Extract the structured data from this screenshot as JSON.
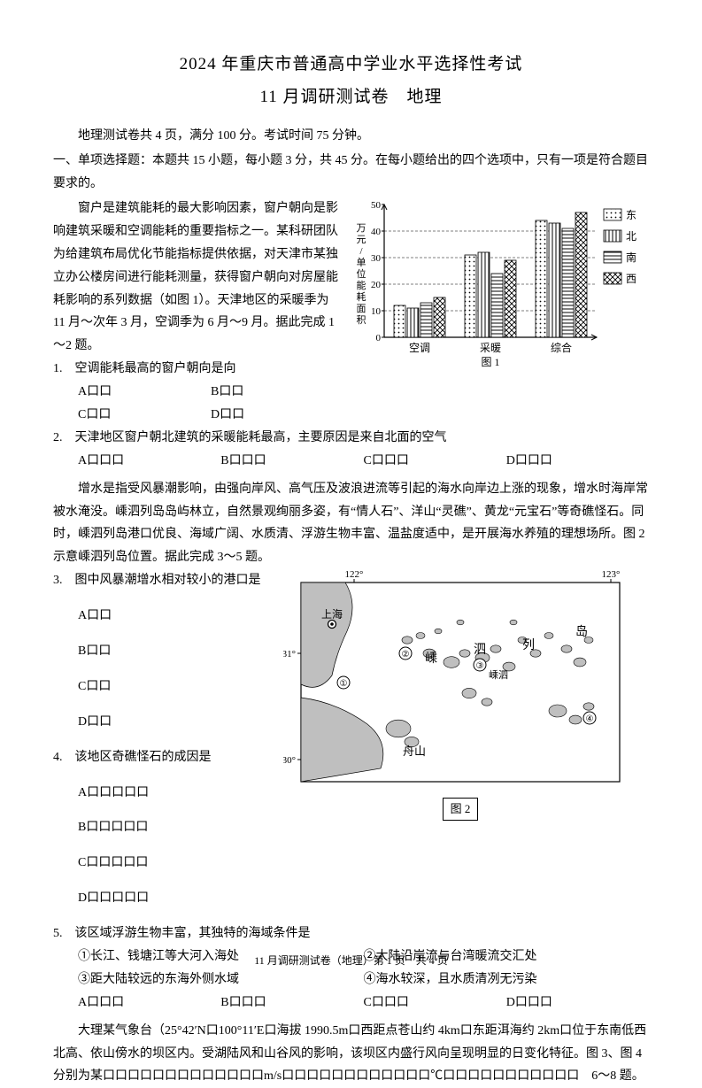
{
  "title_line1": "2024 年重庆市普通高中学业水平选择性考试",
  "title_line2": "11 月调研测试卷　地理",
  "intro": "地理测试卷共 4 页，满分 100 分。考试时间 75 分钟。",
  "section1_head": "一、单项选择题：本题共 15 小题，每小题 3 分，共 45 分。在每小题给出的四个选项中，只有一项是符合题目要求的。",
  "passage1_left": "窗户是建筑能耗的最大影响因素，窗户朝向是影响建筑采暖和空调能耗的重要指标之一。某科研团队为给建筑布局优化节能指标提供依据，对天津市某独立办公楼房间进行能耗测量，获得窗户朝向对房屋能耗影响的系列数据（如图 1）。天津地区的采暖季为 11 月～次年 3 月，空调季为 6 月～9 月。据此完成 1～2 题。",
  "q1": {
    "stem": "1.　空调能耗最高的窗户朝向是向",
    "A": "A口口",
    "B": "B口口",
    "C": "C口口",
    "D": "D口口"
  },
  "q2": {
    "stem": "2.　天津地区窗户朝北建筑的采暖能耗最高，主要原因是来自北面的空气",
    "A": "A口口口",
    "B": "B口口口",
    "C": "C口口口",
    "D": "D口口口"
  },
  "passage2": "增水是指受风暴潮影响，由强向岸风、高气压及波浪进流等引起的海水向岸边上涨的现象，增水时海岸常被水淹没。嵊泗列岛岛屿林立，自然景观绚丽多姿，有“情人石”、洋山“灵礁”、黄龙“元宝石”等奇礁怪石。同时，嵊泗列岛港口优良、海域广阔、水质清、浮游生物丰富、温盐度适中，是开展海水养殖的理想场所。图 2 示意嵊泗列岛位置。据此完成 3～5 题。",
  "q3": {
    "stem": "3.　图中风暴潮增水相对较小的港口是",
    "A": "A口口",
    "B": "B口口",
    "C": "C口口",
    "D": "D口口"
  },
  "q4": {
    "stem": "4.　该地区奇礁怪石的成因是",
    "A": "A口口口口口",
    "B": "B口口口口口",
    "C": "C口口口口口",
    "D": "D口口口口口"
  },
  "q5": {
    "stem": "5.　该区域浮游生物丰富，其独特的海域条件是",
    "c1": "①长江、钱塘江等大河入海处",
    "c2": "②大陆沿岸流与台湾暖流交汇处",
    "c3": "③距大陆较远的东海外侧水域",
    "c4": "④海水较深，且水质清冽无污染",
    "A": "A口口口",
    "B": "B口口口",
    "C": "C口口口",
    "D": "D口口口"
  },
  "passage3_a": "大理某气象台（25°42′N口100°11′E口海拔 1990.5m口西距点苍山约 4km口东距洱海约 2km口位于东南低西北高、依山傍水的坝区内。受湖陆风和山谷风的影响，该坝区内盛行风向呈现明显的日变化特征。图 3、图 4 分别为某口口口口口口口口口口口口口m/s口口口口口口口口口口口口℃口口口口口口口口口口口　6～8 题。",
  "chart1": {
    "type": "bar",
    "groups": [
      "空调",
      "采暖",
      "综合"
    ],
    "series": [
      "东",
      "北",
      "南",
      "西"
    ],
    "values": {
      "空调": [
        12,
        11,
        13,
        15
      ],
      "采暖": [
        31,
        32,
        24,
        29
      ],
      "综合": [
        44,
        43,
        41,
        47
      ]
    },
    "series_patterns": [
      "dots",
      "vlines",
      "hlines",
      "cross"
    ],
    "ylim": [
      0,
      50
    ],
    "ytick_step": 10,
    "ylabel": "万元/单位能耗面积",
    "fig_label": "图 1",
    "background": "#ffffff",
    "axis_color": "#000000",
    "label_fontsize": 12
  },
  "map2": {
    "type": "map",
    "fig_label": "图 2",
    "lon_ticks": [
      "122°",
      "123°"
    ],
    "lat_ticks": [
      "31°",
      "30°"
    ],
    "labels": [
      "上海",
      "嵊",
      "泗",
      "列",
      "岛",
      "舟山",
      "嵊泗"
    ],
    "points": [
      "①",
      "②",
      "③",
      "④"
    ],
    "land_fill": "#bfbfbf",
    "sea_fill": "#ffffff",
    "border_color": "#000000"
  },
  "footer": "11 月调研测试卷（地理）第 1 页　共 4 页"
}
